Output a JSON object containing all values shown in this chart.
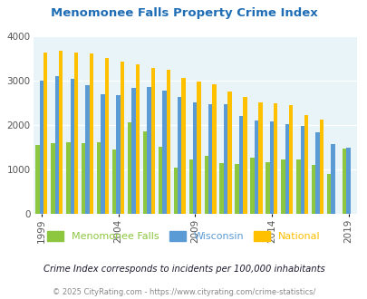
{
  "title": "Menomonee Falls Property Crime Index",
  "years": [
    1999,
    2000,
    2001,
    2002,
    2003,
    2004,
    2005,
    2006,
    2007,
    2008,
    2009,
    2010,
    2011,
    2012,
    2013,
    2014,
    2015,
    2016,
    2017,
    2018,
    2019
  ],
  "menomonee_falls": [
    1550,
    1580,
    1600,
    1580,
    1600,
    1440,
    2050,
    1850,
    1500,
    1040,
    1230,
    1310,
    1140,
    1110,
    1260,
    1160,
    1230,
    1230,
    1100,
    900,
    1470
  ],
  "wisconsin": [
    3000,
    3100,
    3040,
    2900,
    2680,
    2670,
    2840,
    2850,
    2760,
    2620,
    2510,
    2470,
    2470,
    2190,
    2090,
    2080,
    2020,
    1970,
    1840,
    1570,
    1490
  ],
  "national": [
    3620,
    3660,
    3630,
    3600,
    3500,
    3430,
    3370,
    3280,
    3230,
    3060,
    2970,
    2920,
    2740,
    2620,
    2510,
    2490,
    2450,
    2220,
    2110,
    null,
    null
  ],
  "menomonee_color": "#8dc63f",
  "wisconsin_color": "#5b9bd5",
  "national_color": "#ffc000",
  "bg_color": "#e8f4f8",
  "title_color": "#1e6db5",
  "subtitle_color": "#1a1a2e",
  "footer_color": "#888888",
  "legend_labels": [
    "Menomonee Falls",
    "Wisconsin",
    "National"
  ],
  "subtitle": "Crime Index corresponds to incidents per 100,000 inhabitants",
  "footer": "© 2025 CityRating.com - https://www.cityrating.com/crime-statistics/",
  "ylim": [
    0,
    4000
  ],
  "yticks": [
    0,
    1000,
    2000,
    3000,
    4000
  ],
  "xtick_years": [
    1999,
    2004,
    2009,
    2014,
    2019
  ]
}
